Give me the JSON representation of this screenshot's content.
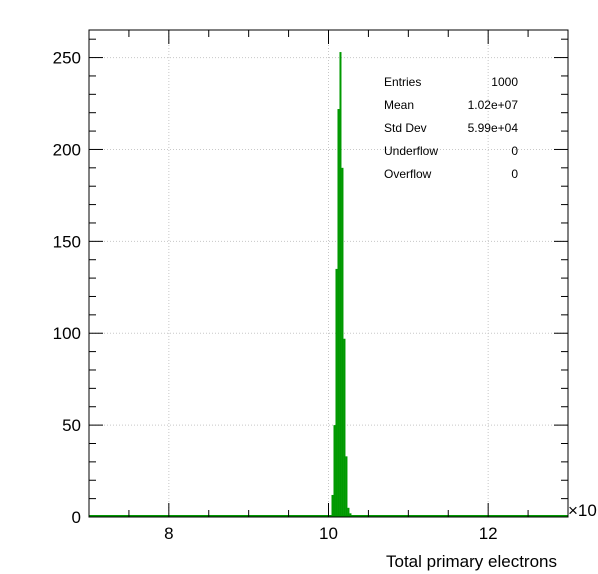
{
  "chart_data": {
    "type": "bar",
    "xlabel": "Total primary electrons",
    "ylabel": "",
    "x_multiplier_label": "×10",
    "xlim": [
      7.0,
      13.0
    ],
    "ylim": [
      0,
      265
    ],
    "x_ticks": [
      8,
      10,
      12
    ],
    "y_ticks": [
      0,
      50,
      100,
      150,
      200,
      250
    ],
    "grid": true,
    "bar_color": "#009900",
    "bins": [
      {
        "x": 10.05,
        "value": 12
      },
      {
        "x": 10.075,
        "value": 50
      },
      {
        "x": 10.1,
        "value": 135
      },
      {
        "x": 10.125,
        "value": 222
      },
      {
        "x": 10.15,
        "value": 253
      },
      {
        "x": 10.175,
        "value": 190
      },
      {
        "x": 10.2,
        "value": 97
      },
      {
        "x": 10.225,
        "value": 33
      },
      {
        "x": 10.25,
        "value": 5
      },
      {
        "x": 10.275,
        "value": 2
      }
    ],
    "stats": [
      {
        "label": "Entries",
        "value": "1000"
      },
      {
        "label": "Mean",
        "value": "1.02e+07"
      },
      {
        "label": "Std Dev",
        "value": "5.99e+04"
      },
      {
        "label": "Underflow",
        "value": "0"
      },
      {
        "label": "Overflow",
        "value": "0"
      }
    ]
  }
}
